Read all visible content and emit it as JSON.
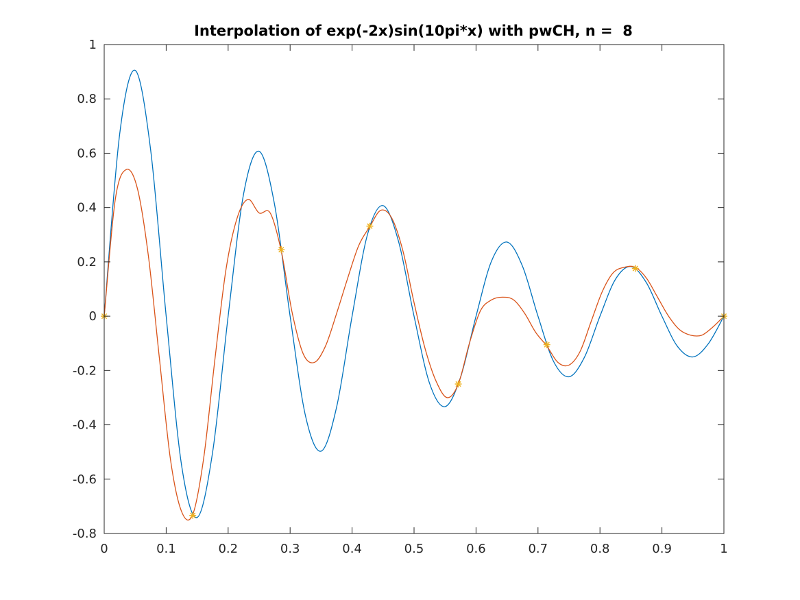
{
  "chart_data": {
    "type": "line",
    "title": "Interpolation of exp(-2x)sin(10pi*x) with pwCH, n =  8",
    "xlabel": "",
    "ylabel": "",
    "xlim": [
      0,
      1
    ],
    "ylim": [
      -0.8,
      1
    ],
    "x_ticks": [
      0,
      0.1,
      0.2,
      0.3,
      0.4,
      0.5,
      0.6,
      0.7,
      0.8,
      0.9,
      1
    ],
    "x_tick_labels": [
      "0",
      "0.1",
      "0.2",
      "0.3",
      "0.4",
      "0.5",
      "0.6",
      "0.7",
      "0.8",
      "0.9",
      "1"
    ],
    "y_ticks": [
      -0.8,
      -0.6,
      -0.4,
      -0.2,
      0,
      0.2,
      0.4,
      0.6,
      0.8,
      1
    ],
    "y_tick_labels": [
      "-0.8",
      "-0.6",
      "-0.4",
      "-0.2",
      "0",
      "0.2",
      "0.4",
      "0.6",
      "0.8",
      "1"
    ],
    "grid": false,
    "series": [
      {
        "kind": "line",
        "color": "#0072BD",
        "x": [
          0,
          0.025,
          0.05,
          0.075,
          0.1,
          0.125,
          0.15,
          0.175,
          0.2,
          0.225,
          0.25,
          0.275,
          0.3,
          0.325,
          0.35,
          0.375,
          0.4,
          0.425,
          0.45,
          0.475,
          0.5,
          0.525,
          0.55,
          0.575,
          0.6,
          0.625,
          0.65,
          0.675,
          0.7,
          0.725,
          0.75,
          0.775,
          0.8,
          0.825,
          0.85,
          0.875,
          0.9,
          0.925,
          0.95,
          0.975,
          1
        ],
        "y": [
          0,
          0.671,
          0.905,
          0.611,
          0,
          -0.551,
          -0.741,
          -0.5,
          0,
          0.451,
          0.607,
          0.41,
          0,
          -0.369,
          -0.497,
          -0.335,
          0,
          0.302,
          0.407,
          0.275,
          0,
          -0.247,
          -0.333,
          -0.225,
          0,
          0.203,
          0.273,
          0.184,
          0,
          -0.166,
          -0.223,
          -0.151,
          0,
          0.136,
          0.183,
          0.123,
          0,
          -0.111,
          -0.15,
          -0.101,
          0
        ]
      },
      {
        "kind": "line",
        "color": "#D95319",
        "x": [
          0,
          0.0179,
          0.0357,
          0.0536,
          0.0714,
          0.0893,
          0.1071,
          0.125,
          0.1429,
          0.1607,
          0.1786,
          0.1964,
          0.2143,
          0.2321,
          0.25,
          0.2679,
          0.2857,
          0.3036,
          0.3214,
          0.3393,
          0.3571,
          0.375,
          0.3929,
          0.4107,
          0.4286,
          0.4464,
          0.4643,
          0.4821,
          0.5,
          0.5179,
          0.5357,
          0.5536,
          0.5714,
          0.5893,
          0.6071,
          0.625,
          0.6429,
          0.6607,
          0.6786,
          0.6964,
          0.7143,
          0.7321,
          0.75,
          0.7679,
          0.7857,
          0.8036,
          0.8214,
          0.8393,
          0.8571,
          0.875,
          0.8929,
          0.9107,
          0.9286,
          0.9464,
          0.9643,
          0.9821,
          1
        ],
        "y": [
          0,
          0.43,
          0.54,
          0.47,
          0.22,
          -0.16,
          -0.53,
          -0.72,
          -0.73,
          -0.52,
          -0.16,
          0.17,
          0.36,
          0.43,
          0.38,
          0.38,
          0.24,
          0.01,
          -0.14,
          -0.17,
          -0.11,
          0.01,
          0.14,
          0.26,
          0.33,
          0.39,
          0.36,
          0.24,
          0.05,
          -0.12,
          -0.24,
          -0.3,
          -0.25,
          -0.1,
          0.02,
          0.06,
          0.07,
          0.06,
          0.01,
          -0.06,
          -0.11,
          -0.17,
          -0.18,
          -0.13,
          -0.02,
          0.09,
          0.16,
          0.18,
          0.18,
          0.14,
          0.07,
          0.0,
          -0.05,
          -0.07,
          -0.07,
          -0.04,
          0
        ]
      },
      {
        "kind": "markers",
        "marker": "asterisk",
        "color": "#EDB120",
        "x": [
          0,
          0.1429,
          0.2857,
          0.4286,
          0.5714,
          0.7143,
          0.8571,
          1
        ],
        "y": [
          0,
          -0.7334,
          0.245,
          0.3314,
          -0.2497,
          -0.1048,
          0.1757,
          0
        ]
      }
    ]
  }
}
